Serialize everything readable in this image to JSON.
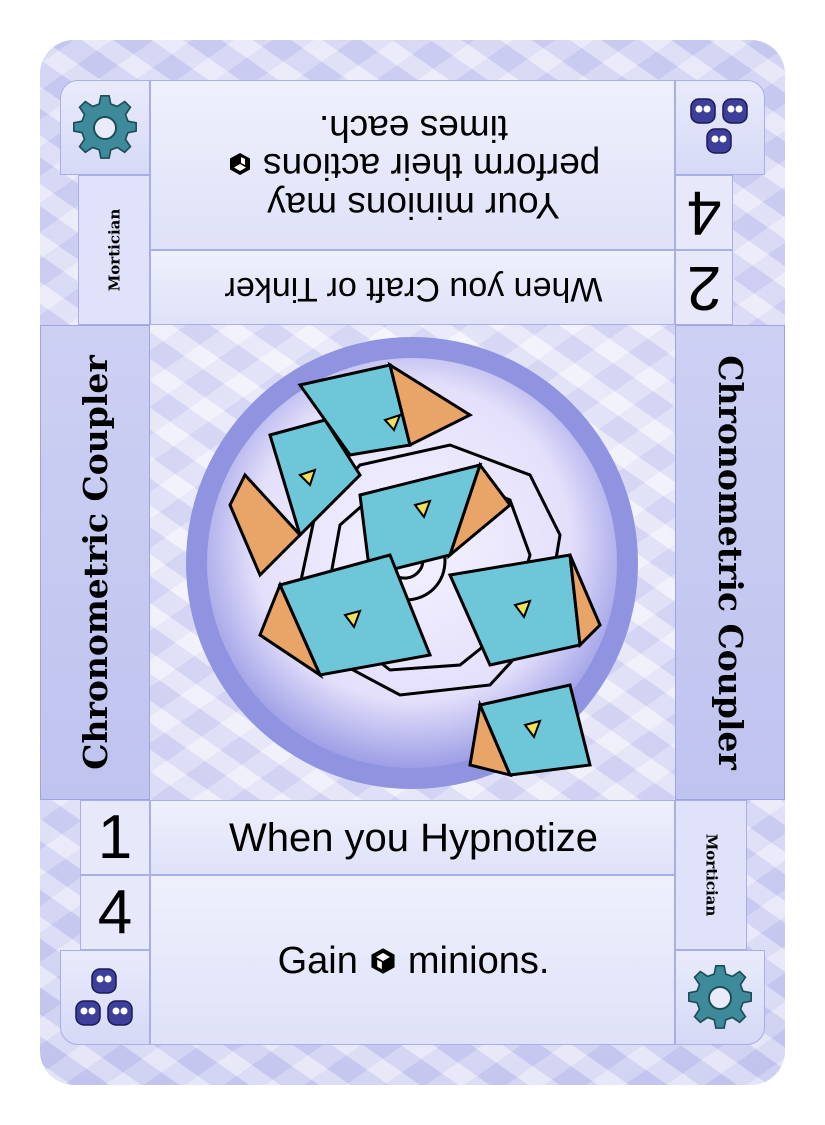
{
  "card": {
    "title": "Chronometric Coupler",
    "role": "Mortician",
    "bottom": {
      "cost_top": "1",
      "cost_bottom": "4",
      "trigger": "When you Hypnotize",
      "effect_prefix": "Gain",
      "effect_suffix": "minions."
    },
    "top": {
      "cost_top": "2",
      "cost_bottom": "4",
      "trigger": "When you Craft or Tinker",
      "effect_line1": "Your minions may",
      "effect_line2": "perform their actions",
      "effect_line3": "times each."
    }
  },
  "icons": {
    "gear": "gear-icon",
    "minion": "minion-face-icon",
    "die": "die-icon"
  },
  "colors": {
    "frame": "#c7c9f0",
    "panel": "#e3e5fa",
    "gear": "#3d8b9a",
    "minion": "#3e3f9a",
    "art_blue": "#6ec7d8",
    "art_orange": "#e9a468"
  }
}
